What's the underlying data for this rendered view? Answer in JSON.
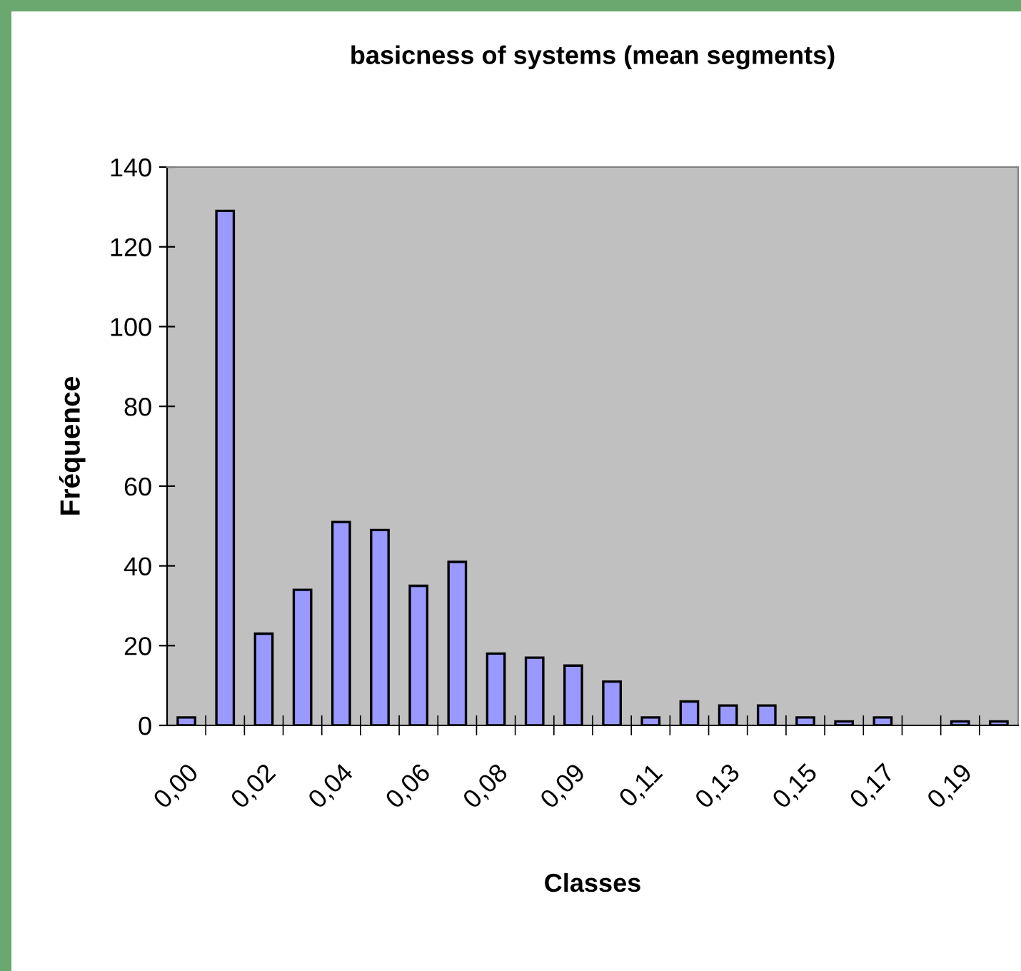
{
  "chart_data": {
    "type": "bar",
    "title": "basicness of systems (mean segments)",
    "xlabel": "Classes",
    "ylabel": "Fréquence",
    "categories": [
      "0,00",
      null,
      "0,02",
      null,
      "0,04",
      null,
      "0,06",
      null,
      "0,08",
      null,
      "0,09",
      null,
      "0,11",
      null,
      "0,13",
      null,
      "0,15",
      null,
      "0,17",
      null,
      "0,19",
      null
    ],
    "values": [
      2,
      129,
      23,
      34,
      51,
      49,
      35,
      41,
      18,
      17,
      15,
      11,
      2,
      6,
      5,
      5,
      2,
      1,
      2,
      null,
      1,
      1
    ],
    "color": "#9999ff",
    "ylim": [
      0,
      140
    ],
    "yticks": [
      0,
      20,
      40,
      60,
      80,
      100,
      120,
      140
    ],
    "grid": false,
    "legend": false
  }
}
